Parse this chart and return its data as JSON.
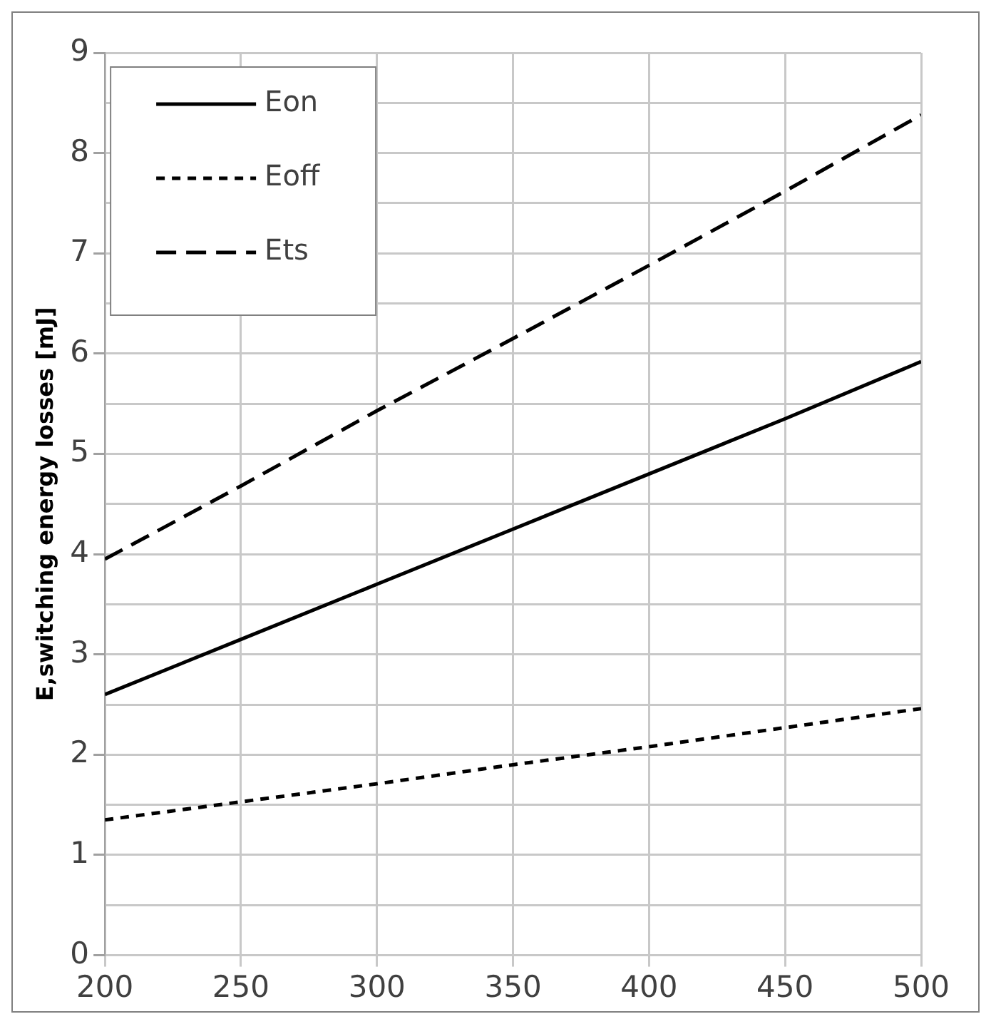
{
  "chart_data": {
    "type": "line",
    "ylabel": "E,switching energy losses [mJ]",
    "x": [
      200,
      250,
      300,
      350,
      400,
      450,
      500
    ],
    "series": [
      {
        "name": "Eon",
        "color": "#000000",
        "line_style": "solid",
        "values": [
          2.6,
          3.15,
          3.7,
          4.25,
          4.8,
          5.35,
          5.92
        ]
      },
      {
        "name": "Eoff",
        "color": "#000000",
        "line_style": "dotted",
        "values": [
          1.35,
          1.53,
          1.71,
          1.9,
          2.08,
          2.27,
          2.46
        ]
      },
      {
        "name": "Ets",
        "color": "#000000",
        "line_style": "dashed",
        "values": [
          3.95,
          4.68,
          5.43,
          6.15,
          6.88,
          7.62,
          8.38
        ]
      }
    ],
    "xlim": [
      200,
      500
    ],
    "xticks": [
      200,
      250,
      300,
      350,
      400,
      450,
      500
    ],
    "ylim": [
      0,
      9
    ],
    "yticks": [
      0,
      {
        "value": 0.5,
        "label": null
      },
      1,
      {
        "value": 1.5,
        "label": null
      },
      2,
      {
        "value": 2.5,
        "label": null
      },
      3,
      {
        "value": 3.5,
        "label": null
      },
      4,
      {
        "value": 4.5,
        "label": null
      },
      5,
      {
        "value": 5.5,
        "label": null
      },
      6,
      {
        "value": 6.5,
        "label": null
      },
      7,
      {
        "value": 7.5,
        "label": null
      },
      8,
      {
        "value": 8.5,
        "label": null
      },
      9
    ],
    "grid": true,
    "legend": "top left",
    "marker": "none"
  }
}
